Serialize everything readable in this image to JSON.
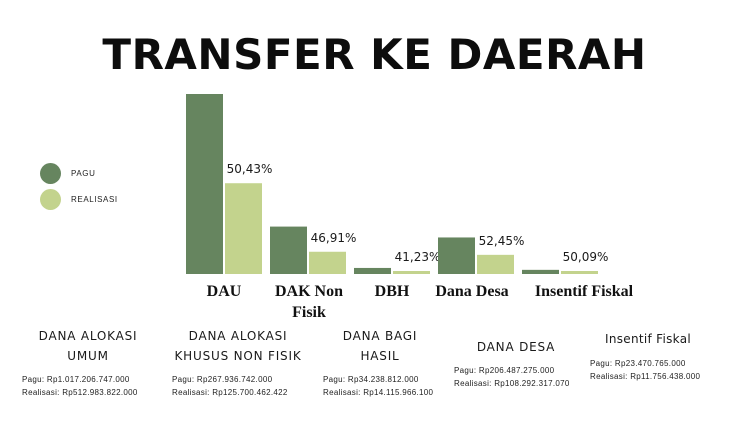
{
  "title": "TRANSFER KE DAERAH",
  "colors": {
    "pagu": "#66855f",
    "realisasi": "#c3d38d"
  },
  "legend": [
    {
      "label": "PAGU",
      "color": "#66855f"
    },
    {
      "label": "REALISASI",
      "color": "#c3d38d"
    }
  ],
  "chart_data": {
    "type": "bar",
    "title": "TRANSFER KE DAERAH",
    "categories": [
      "DAU",
      "DAK Non Fisik",
      "DBH",
      "Dana Desa",
      "Insentif Fiskal"
    ],
    "series": [
      {
        "name": "PAGU",
        "values": [
          1017206747000,
          267936742000,
          34238812000,
          206487275000,
          23470765000
        ]
      },
      {
        "name": "REALISASI",
        "values": [
          512983822000,
          125700462422,
          14115966100,
          108292317070,
          11756438000
        ]
      }
    ],
    "data_labels": [
      "50,43%",
      "46,91%",
      "41,23%",
      "52,45%",
      "50,09%"
    ],
    "ylim": [
      0,
      1017206747000
    ],
    "grid": false,
    "legend_position": "left"
  },
  "details": [
    {
      "title": "DANA ALOKASI UMUM",
      "pagu": "Pagu: Rp1.017.206.747.000",
      "realisasi": "Realisasi: Rp512.983.822.000"
    },
    {
      "title": "DANA ALOKASI KHUSUS NON FISIK",
      "pagu": "Pagu: Rp267.936.742.000",
      "realisasi": "Realisasi: Rp125.700.462.422"
    },
    {
      "title": "DANA BAGI HASIL",
      "pagu": "Pagu: Rp34.238.812.000",
      "realisasi": "Realisasi: Rp14.115.966.100"
    },
    {
      "title": "DANA DESA",
      "pagu": "Pagu: Rp206.487.275.000",
      "realisasi": "Realisasi: Rp108.292.317.070"
    },
    {
      "title": "Insentif Fiskal",
      "pagu": "Pagu: Rp23.470.765.000",
      "realisasi": "Realisasi: Rp11.756.438.000"
    }
  ]
}
